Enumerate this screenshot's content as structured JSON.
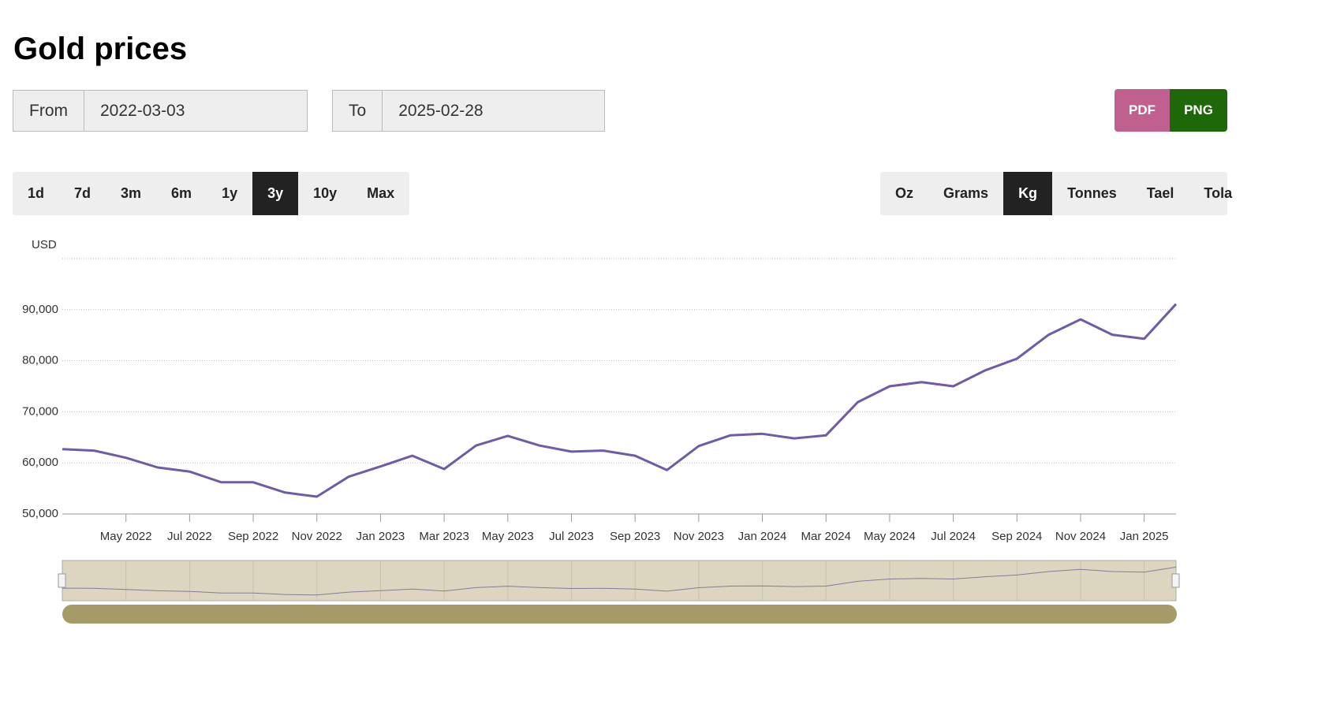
{
  "header": {
    "title": "Gold prices"
  },
  "date_range": {
    "from_label": "From",
    "from": "2022-03-03",
    "to_label": "To",
    "to": "2025-02-28"
  },
  "export": [
    "PDF",
    "PNG"
  ],
  "periods": {
    "options": [
      "1d",
      "7d",
      "3m",
      "6m",
      "1y",
      "3y",
      "10y",
      "Max"
    ],
    "selected": 5
  },
  "units": {
    "options": [
      "Oz",
      "Grams",
      "Kg",
      "Tonnes",
      "Tael",
      "Tola"
    ],
    "selected": 2
  },
  "chart_data": {
    "type": "line",
    "y_axis_label": "USD",
    "categories": [
      null,
      null,
      "May 2022",
      null,
      "Jul 2022",
      null,
      "Sep 2022",
      null,
      "Nov 2022",
      null,
      "Jan 2023",
      null,
      "Mar 2023",
      null,
      "May 2023",
      null,
      "Jul 2023",
      null,
      "Sep 2023",
      null,
      "Nov 2023",
      null,
      "Jan 2024",
      null,
      "Mar 2024",
      null,
      "May 2024",
      null,
      "Jul 2024",
      null,
      "Sep 2024",
      null,
      "Nov 2024",
      null,
      "Jan 2025",
      null
    ],
    "values": [
      62700,
      62400,
      61000,
      59100,
      58300,
      56200,
      56200,
      54200,
      53400,
      57300,
      59300,
      61400,
      58800,
      63400,
      65300,
      63400,
      62200,
      62400,
      61400,
      58600,
      63300,
      65400,
      65700,
      64800,
      65400,
      71900,
      75000,
      75800,
      75000,
      78100,
      80400,
      85100,
      88100,
      85100,
      84300,
      91100
    ],
    "color": "#6f5ba7",
    "ylim": [
      50000,
      100000
    ],
    "yticks": [
      {
        "value": 50000,
        "label": "50,000"
      },
      {
        "value": 60000,
        "label": "60,000"
      },
      {
        "value": 70000,
        "label": "70,000"
      },
      {
        "value": 80000,
        "label": "80,000"
      },
      {
        "value": 90000,
        "label": "90,000"
      }
    ],
    "grid": true
  }
}
